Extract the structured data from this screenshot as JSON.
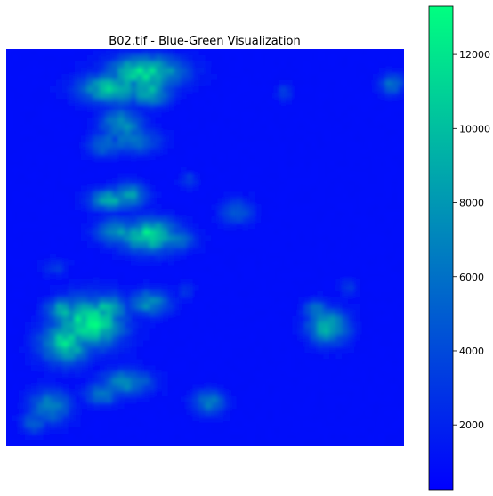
{
  "chart_data": {
    "type": "heatmap",
    "title": "B02.tif - Blue-Green Visualization",
    "colormap": "winter",
    "colors": {
      "low": "#0000ff",
      "high": "#00ff80"
    },
    "axes_visible": false,
    "colorbar": {
      "orientation": "vertical",
      "placement": "right",
      "vmin": 250,
      "vmax": 13300,
      "ticks": [
        2000,
        4000,
        6000,
        8000,
        10000,
        12000
      ],
      "tick_labels": [
        "2000",
        "4000",
        "6000",
        "8000",
        "10000",
        "12000"
      ]
    },
    "background_value": 800,
    "grid": 64
  }
}
